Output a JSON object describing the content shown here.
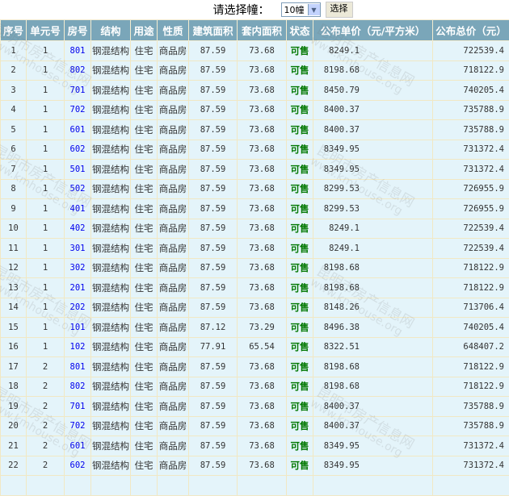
{
  "selector": {
    "label": "请选择幢：",
    "value": "10幢",
    "button": "选择"
  },
  "columns": [
    "序号",
    "单元号",
    "房号",
    "结构",
    "用途",
    "性质",
    "建筑面积",
    "套内面积",
    "状态",
    "公布单价（元/平方米）",
    "公布总价（元）"
  ],
  "rows": [
    [
      "1",
      "1",
      "801",
      "钢混结构",
      "住宅",
      "商品房",
      "87.59",
      "73.68",
      "可售",
      "8249.1",
      "722539.4"
    ],
    [
      "2",
      "1",
      "802",
      "钢混结构",
      "住宅",
      "商品房",
      "87.59",
      "73.68",
      "可售",
      "8198.68",
      "718122.9"
    ],
    [
      "3",
      "1",
      "701",
      "钢混结构",
      "住宅",
      "商品房",
      "87.59",
      "73.68",
      "可售",
      "8450.79",
      "740205.4"
    ],
    [
      "4",
      "1",
      "702",
      "钢混结构",
      "住宅",
      "商品房",
      "87.59",
      "73.68",
      "可售",
      "8400.37",
      "735788.9"
    ],
    [
      "5",
      "1",
      "601",
      "钢混结构",
      "住宅",
      "商品房",
      "87.59",
      "73.68",
      "可售",
      "8400.37",
      "735788.9"
    ],
    [
      "6",
      "1",
      "602",
      "钢混结构",
      "住宅",
      "商品房",
      "87.59",
      "73.68",
      "可售",
      "8349.95",
      "731372.4"
    ],
    [
      "7",
      "1",
      "501",
      "钢混结构",
      "住宅",
      "商品房",
      "87.59",
      "73.68",
      "可售",
      "8349.95",
      "731372.4"
    ],
    [
      "8",
      "1",
      "502",
      "钢混结构",
      "住宅",
      "商品房",
      "87.59",
      "73.68",
      "可售",
      "8299.53",
      "726955.9"
    ],
    [
      "9",
      "1",
      "401",
      "钢混结构",
      "住宅",
      "商品房",
      "87.59",
      "73.68",
      "可售",
      "8299.53",
      "726955.9"
    ],
    [
      "10",
      "1",
      "402",
      "钢混结构",
      "住宅",
      "商品房",
      "87.59",
      "73.68",
      "可售",
      "8249.1",
      "722539.4"
    ],
    [
      "11",
      "1",
      "301",
      "钢混结构",
      "住宅",
      "商品房",
      "87.59",
      "73.68",
      "可售",
      "8249.1",
      "722539.4"
    ],
    [
      "12",
      "1",
      "302",
      "钢混结构",
      "住宅",
      "商品房",
      "87.59",
      "73.68",
      "可售",
      "8198.68",
      "718122.9"
    ],
    [
      "13",
      "1",
      "201",
      "钢混结构",
      "住宅",
      "商品房",
      "87.59",
      "73.68",
      "可售",
      "8198.68",
      "718122.9"
    ],
    [
      "14",
      "1",
      "202",
      "钢混结构",
      "住宅",
      "商品房",
      "87.59",
      "73.68",
      "可售",
      "8148.26",
      "713706.4"
    ],
    [
      "15",
      "1",
      "101",
      "钢混结构",
      "住宅",
      "商品房",
      "87.12",
      "73.29",
      "可售",
      "8496.38",
      "740205.4"
    ],
    [
      "16",
      "1",
      "102",
      "钢混结构",
      "住宅",
      "商品房",
      "77.91",
      "65.54",
      "可售",
      "8322.51",
      "648407.2"
    ],
    [
      "17",
      "2",
      "801",
      "钢混结构",
      "住宅",
      "商品房",
      "87.59",
      "73.68",
      "可售",
      "8198.68",
      "718122.9"
    ],
    [
      "18",
      "2",
      "802",
      "钢混结构",
      "住宅",
      "商品房",
      "87.59",
      "73.68",
      "可售",
      "8198.68",
      "718122.9"
    ],
    [
      "19",
      "2",
      "701",
      "钢混结构",
      "住宅",
      "商品房",
      "87.59",
      "73.68",
      "可售",
      "8400.37",
      "735788.9"
    ],
    [
      "20",
      "2",
      "702",
      "钢混结构",
      "住宅",
      "商品房",
      "87.59",
      "73.68",
      "可售",
      "8400.37",
      "735788.9"
    ],
    [
      "21",
      "2",
      "601",
      "钢混结构",
      "住宅",
      "商品房",
      "87.59",
      "73.68",
      "可售",
      "8349.95",
      "731372.4"
    ],
    [
      "22",
      "2",
      "602",
      "钢混结构",
      "住宅",
      "商品房",
      "87.59",
      "73.68",
      "可售",
      "8349.95",
      "731372.4"
    ]
  ],
  "watermark": {
    "cn": "昆明市房产信息网",
    "url": "www.kmhouse.org"
  },
  "colors": {
    "header_bg": "#7aa6b9",
    "row_bg": "#e4f4fa",
    "border": "#f1e8c4",
    "room_link": "#0000ee",
    "status_available": "#007700"
  }
}
